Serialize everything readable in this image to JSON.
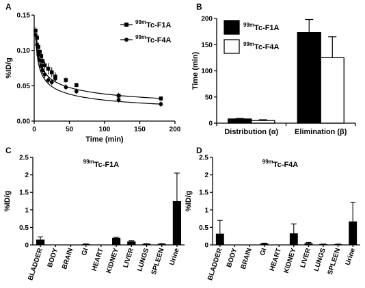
{
  "chart_data": [
    {
      "panel": "A",
      "type": "scatter",
      "xlabel": "Time (min)",
      "ylabel": "%ID/g",
      "xlim": [
        0,
        200
      ],
      "ylim": [
        0,
        0.15
      ],
      "xticks": [
        "0",
        "50",
        "100",
        "150",
        "200"
      ],
      "yticks": [
        "0.00",
        "0.05",
        "0.10",
        "0.15"
      ],
      "legend_position": "top-right",
      "fit_curves": true,
      "series": [
        {
          "name": "99mTc-F1A",
          "marker": "square",
          "x": [
            2,
            4,
            6,
            8,
            10,
            12,
            15,
            20,
            25,
            30,
            45,
            60,
            120,
            180
          ],
          "y": [
            0.128,
            0.118,
            0.105,
            0.098,
            0.092,
            0.085,
            0.079,
            0.074,
            0.069,
            0.063,
            0.058,
            0.051,
            0.036,
            0.032
          ],
          "err": [
            0.005,
            0.005,
            0.006,
            0.006,
            0.006,
            0.006,
            0.005,
            0.008,
            0.007,
            0.006,
            0.004,
            0.003,
            0.004,
            0.003
          ]
        },
        {
          "name": "99mTc-F4A",
          "marker": "circle",
          "x": [
            2,
            4,
            6,
            8,
            10,
            12,
            15,
            20,
            25,
            30,
            45,
            60,
            120,
            180
          ],
          "y": [
            0.122,
            0.108,
            0.094,
            0.086,
            0.078,
            0.072,
            0.066,
            0.058,
            0.055,
            0.06,
            0.048,
            0.042,
            0.03,
            0.024
          ],
          "err": [
            0.006,
            0.006,
            0.006,
            0.006,
            0.006,
            0.005,
            0.005,
            0.005,
            0.004,
            0.005,
            0.004,
            0.004,
            0.004,
            0.004
          ]
        }
      ]
    },
    {
      "panel": "B",
      "type": "bar",
      "ylabel": "Time (min)",
      "ylim": [
        0,
        200
      ],
      "yticks": [
        "0",
        "50",
        "100",
        "150",
        "200"
      ],
      "categories": [
        "Distribution (α)",
        "Elimination (β)"
      ],
      "legend_position": "top-left",
      "series": [
        {
          "name": "99mTc-F1A",
          "color": "#000000",
          "values": [
            8,
            173
          ],
          "err": [
            1,
            25
          ]
        },
        {
          "name": "99mTc-F4A",
          "color": "#ffffff",
          "values": [
            5,
            125
          ],
          "err": [
            1.5,
            40
          ]
        }
      ]
    },
    {
      "panel": "C",
      "type": "bar",
      "title": "99mTc-F1A",
      "ylabel": "%ID/g",
      "ylim": [
        0,
        2.5
      ],
      "yticks": [
        "0",
        "0.5",
        "1",
        "1.5",
        "2",
        "2.5"
      ],
      "categories": [
        "BLADDER",
        "BODY",
        "BRAIN",
        "GI",
        "HEART",
        "KIDNEY",
        "LIVER",
        "LUNGS",
        "SPLEEN",
        "Urine"
      ],
      "values": [
        0.15,
        0.01,
        0.005,
        0.02,
        0.01,
        0.2,
        0.1,
        0.03,
        0.03,
        1.25
      ],
      "err": [
        0.08,
        0.0,
        0.0,
        0.01,
        0.0,
        0.02,
        0.02,
        0.005,
        0.005,
        0.8
      ]
    },
    {
      "panel": "D",
      "type": "bar",
      "title": "99mTc-F4A",
      "ylabel": "%ID/g",
      "ylim": [
        0,
        2.5
      ],
      "yticks": [
        "0",
        "0.5",
        "1",
        "1.5",
        "2",
        "2.5"
      ],
      "categories": [
        "BLADDER",
        "BODY",
        "BRAIN",
        "GI",
        "HEART",
        "KIDNEY",
        "LIVER",
        "LUNGS",
        "SPLEEN",
        "Urine"
      ],
      "values": [
        0.32,
        0.01,
        0.005,
        0.04,
        0.01,
        0.33,
        0.05,
        0.02,
        0.02,
        0.67
      ],
      "err": [
        0.38,
        0.0,
        0.0,
        0.01,
        0.0,
        0.27,
        0.02,
        0.005,
        0.005,
        0.55
      ]
    }
  ]
}
